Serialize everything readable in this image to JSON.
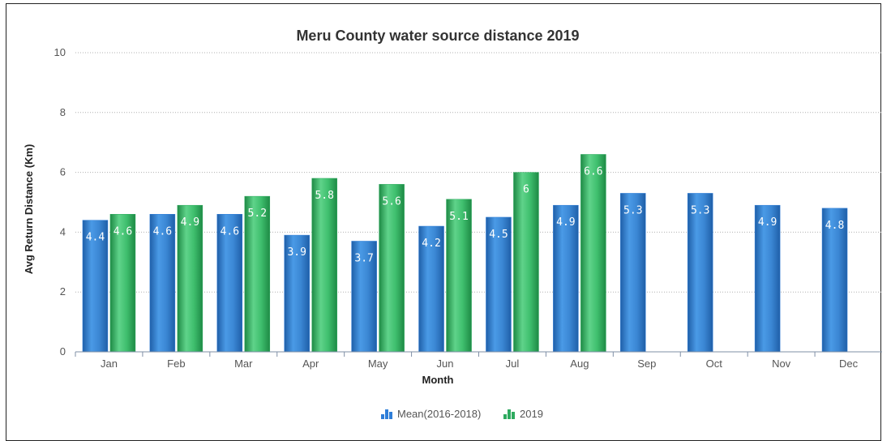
{
  "chart_data": {
    "type": "bar",
    "title": "Meru County water source distance 2019",
    "xlabel": "Month",
    "ylabel": "Avg Return Distance (Km)",
    "ylim": [
      0,
      10
    ],
    "yticks": [
      "0",
      "2",
      "4",
      "6",
      "8",
      "10"
    ],
    "grid": true,
    "legend_position": "bottom",
    "categories": [
      "Jan",
      "Feb",
      "Mar",
      "Apr",
      "May",
      "Jun",
      "Jul",
      "Aug",
      "Sep",
      "Oct",
      "Nov",
      "Dec"
    ],
    "series": [
      {
        "name": "Mean(2016-2018)",
        "color": "#2f7ed8",
        "values": [
          4.4,
          4.6,
          4.6,
          3.9,
          3.7,
          4.2,
          4.5,
          4.9,
          5.3,
          5.3,
          4.9,
          4.8
        ],
        "labels": [
          "4.4",
          "4.6",
          "4.6",
          "3.9",
          "3.7",
          "4.2",
          "4.5",
          "4.9",
          "5.3",
          "5.3",
          "4.9",
          "4.8"
        ]
      },
      {
        "name": "2019",
        "color": "#2eaa5f",
        "values": [
          4.6,
          4.9,
          5.2,
          5.8,
          5.6,
          5.1,
          6,
          6.6,
          null,
          null,
          null,
          null
        ],
        "labels": [
          "4.6",
          "4.9",
          "5.2",
          "5.8",
          "5.6",
          "5.1",
          "6",
          "6.6",
          "",
          "",
          "",
          ""
        ]
      }
    ]
  }
}
